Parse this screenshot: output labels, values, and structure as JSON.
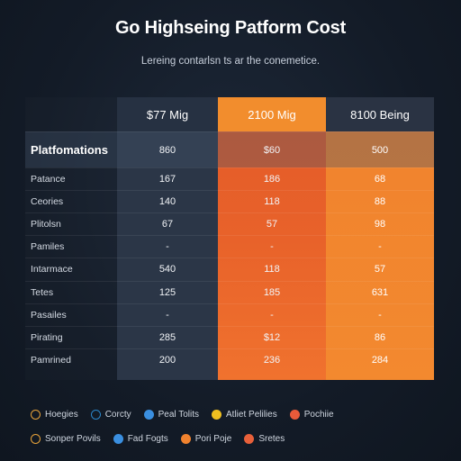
{
  "title": "Go Highseing Patform Cost",
  "subtitle": "Lereing contarlsn ts ar the conemetice.",
  "table": {
    "headers": [
      "$77 Mig",
      "2100 Mig",
      "8100 Being"
    ],
    "rows": [
      {
        "label": "Platfomations",
        "values": [
          "860",
          "$60",
          "500"
        ]
      },
      {
        "label": "Patance",
        "values": [
          "167",
          "186",
          "68"
        ]
      },
      {
        "label": "Ceories",
        "values": [
          "140",
          "118",
          "88"
        ]
      },
      {
        "label": "Plitolsn",
        "values": [
          "67",
          "57",
          "98"
        ]
      },
      {
        "label": "Pamiles",
        "values": [
          "-",
          "-",
          "-"
        ]
      },
      {
        "label": "Intarmace",
        "values": [
          "540",
          "118",
          "57"
        ]
      },
      {
        "label": "Tetes",
        "values": [
          "125",
          "185",
          "631"
        ]
      },
      {
        "label": "Pasailes",
        "values": [
          "-",
          "-",
          "-"
        ]
      },
      {
        "label": "Pirating",
        "values": [
          "285",
          "$12",
          "86"
        ]
      },
      {
        "label": "Pamrined",
        "values": [
          "200",
          "236",
          "284"
        ]
      }
    ]
  },
  "legend": {
    "row1": [
      {
        "label": "Hoegies",
        "color": "#e8a33a",
        "style": "ring"
      },
      {
        "label": "Corcty",
        "color": "#2a86c9",
        "style": "ring"
      },
      {
        "label": "Peal Tolits",
        "color": "#3a8fe0",
        "style": "solid"
      },
      {
        "label": "Atliet Pelilies",
        "color": "#f0c020",
        "style": "solid"
      },
      {
        "label": "Pochiie",
        "color": "#e85a3a",
        "style": "solid"
      }
    ],
    "row2": [
      {
        "label": "Sonper Povils",
        "color": "#e8a33a",
        "style": "ring"
      },
      {
        "label": "Fad Fogts",
        "color": "#3a8fe0",
        "style": "solid"
      },
      {
        "label": "Pori Poje",
        "color": "#f0822e",
        "style": "solid"
      },
      {
        "label": "Sretes",
        "color": "#e8603a",
        "style": "solid"
      }
    ]
  }
}
